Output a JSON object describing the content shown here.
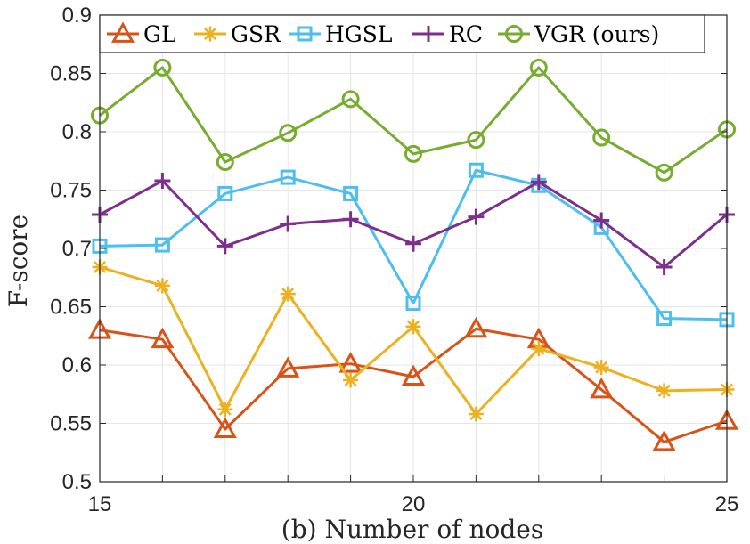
{
  "chart_data": {
    "type": "line",
    "title": "",
    "xlabel": "(b) Number of nodes",
    "ylabel": "F-score",
    "xlim": [
      15,
      25
    ],
    "ylim": [
      0.5,
      0.9
    ],
    "grid": true,
    "legend_position": "top",
    "x": [
      15,
      16,
      17,
      18,
      19,
      20,
      21,
      22,
      23,
      24,
      25
    ],
    "xticks": [
      {
        "value": 15,
        "label": "15"
      },
      {
        "value": 20,
        "label": "20"
      },
      {
        "value": 25,
        "label": "25"
      }
    ],
    "yticks": [
      {
        "value": 0.5,
        "label": "0.5"
      },
      {
        "value": 0.55,
        "label": "0.55"
      },
      {
        "value": 0.6,
        "label": "0.6"
      },
      {
        "value": 0.65,
        "label": "0.65"
      },
      {
        "value": 0.7,
        "label": "0.7"
      },
      {
        "value": 0.75,
        "label": "0.75"
      },
      {
        "value": 0.8,
        "label": "0.8"
      },
      {
        "value": 0.85,
        "label": "0.85"
      },
      {
        "value": 0.9,
        "label": "0.9"
      }
    ],
    "series": [
      {
        "name": "GL",
        "color": "#D95319",
        "marker": "triangle",
        "values": [
          0.63,
          0.622,
          0.545,
          0.597,
          0.601,
          0.59,
          0.631,
          0.622,
          0.579,
          0.534,
          0.552
        ]
      },
      {
        "name": "GSR",
        "color": "#EDB120",
        "marker": "asterisk",
        "values": [
          0.684,
          0.668,
          0.562,
          0.661,
          0.587,
          0.633,
          0.558,
          0.614,
          0.598,
          0.578,
          0.579
        ]
      },
      {
        "name": "HGSL",
        "color": "#4DBEEE",
        "marker": "square",
        "values": [
          0.702,
          0.703,
          0.747,
          0.761,
          0.747,
          0.653,
          0.767,
          0.754,
          0.718,
          0.64,
          0.639
        ]
      },
      {
        "name": "RC",
        "color": "#7E2F8E",
        "marker": "plus",
        "values": [
          0.729,
          0.758,
          0.702,
          0.721,
          0.725,
          0.704,
          0.727,
          0.757,
          0.724,
          0.684,
          0.729
        ]
      },
      {
        "name": "VGR (ours)",
        "color": "#77AC30",
        "marker": "circle",
        "values": [
          0.814,
          0.855,
          0.774,
          0.799,
          0.828,
          0.781,
          0.793,
          0.855,
          0.795,
          0.765,
          0.802
        ]
      }
    ]
  }
}
